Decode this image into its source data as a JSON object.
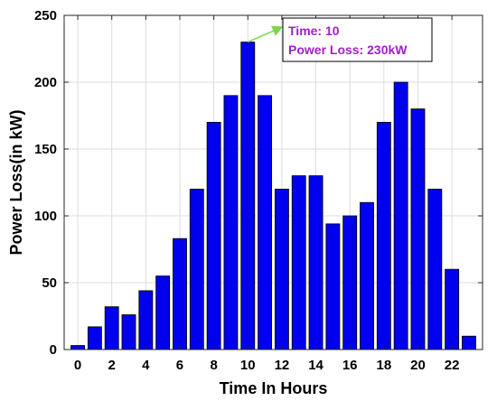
{
  "chart_data": {
    "type": "bar",
    "xlabel": "Time In Hours",
    "ylabel": "Power Loss(in kW)",
    "categories": [
      0,
      1,
      2,
      3,
      4,
      5,
      6,
      7,
      8,
      9,
      10,
      11,
      12,
      13,
      14,
      15,
      16,
      17,
      18,
      19,
      20,
      21,
      22,
      23
    ],
    "values": [
      3,
      17,
      32,
      26,
      44,
      55,
      83,
      120,
      170,
      190,
      230,
      190,
      120,
      130,
      130,
      94,
      100,
      110,
      170,
      200,
      180,
      120,
      60,
      10
    ],
    "xlim": [
      -0.8,
      23.8
    ],
    "ylim": [
      0,
      250
    ],
    "xticks": [
      0,
      2,
      4,
      6,
      8,
      10,
      12,
      14,
      16,
      18,
      20,
      22
    ],
    "yticks": [
      0,
      50,
      100,
      150,
      200,
      250
    ],
    "grid": true,
    "bar_color": "#0000ee",
    "annotation": {
      "line1": "Time: 10",
      "line2": "Power Loss: 230kW",
      "x": 10,
      "y": 230,
      "text_color": "#a020c8",
      "arrow_color": "#7cd64a"
    }
  }
}
